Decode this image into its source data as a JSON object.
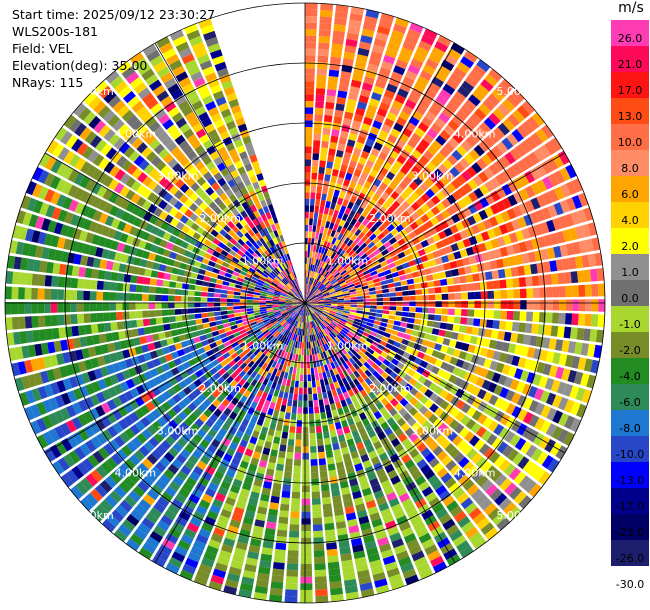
{
  "info": {
    "start_time": "Start time: 2025/09/12 23:30:27",
    "instrument": "WLS200s-181",
    "field": "Field: VEL",
    "elevation": "Elevation(deg): 35.00",
    "nrays": "NRays: 115"
  },
  "chart_data": {
    "type": "ppi",
    "field": "VEL",
    "units": "m/s",
    "range_rings_km": [
      1,
      2,
      3,
      4,
      5
    ],
    "ring_labels": [
      "1.00km",
      "2.00km",
      "3.00km",
      "4.00km",
      "5.00km"
    ],
    "max_range_km": 5.0,
    "elevation_deg": 35.0,
    "n_rays": 115,
    "missing_sector_deg": [
      340,
      360
    ],
    "colorbar": {
      "title": "m/s",
      "levels": [
        "26.0",
        "21.0",
        "17.0",
        "13.0",
        "10.0",
        "8.0",
        "6.0",
        "4.0",
        "2.0",
        "1.0",
        "0.0",
        "-1.0",
        "-2.0",
        "-4.0",
        "-6.0",
        "-8.0",
        "-10.0",
        "-13.0",
        "-17.0",
        "-21.0",
        "-26.0",
        "-30.0"
      ],
      "colors": [
        "#ff3cb4",
        "#ff0a5a",
        "#ff1414",
        "#ff4b14",
        "#ff6e46",
        "#ff8c64",
        "#ffa500",
        "#ffd200",
        "#ffff00",
        "#909090",
        "#707070",
        "#a8d830",
        "#788c28",
        "#228b22",
        "#2e8b57",
        "#1e78d2",
        "#2846c8",
        "#0000ff",
        "#00008c",
        "#000064",
        "#1e1e6e"
      ]
    },
    "sectors": [
      {
        "from_deg": 0,
        "to_deg": 90,
        "dominant": "positive (red/orange)"
      },
      {
        "from_deg": 90,
        "to_deg": 140,
        "dominant": "weak (yellow/gray)"
      },
      {
        "from_deg": 140,
        "to_deg": 250,
        "dominant": "negative (green/blue)"
      },
      {
        "from_deg": 250,
        "to_deg": 340,
        "dominant": "mixed (yellow/olive)"
      }
    ]
  }
}
